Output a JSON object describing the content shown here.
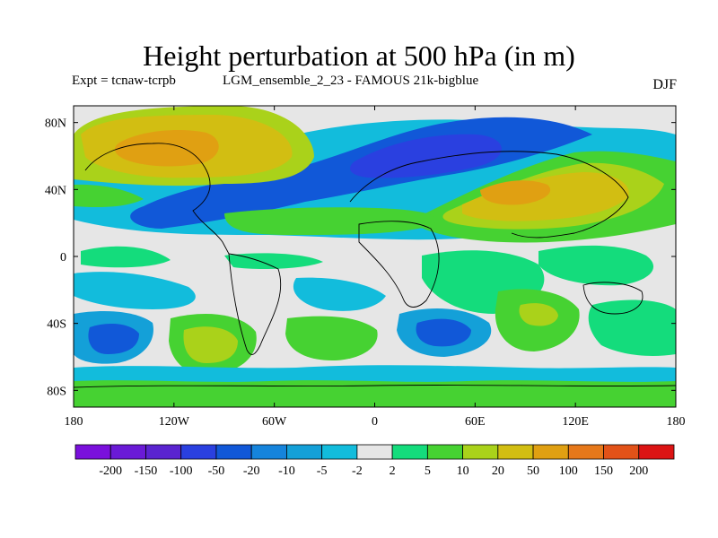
{
  "title": "Height perturbation at 500 hPa (in m)",
  "experiment_label": "Expt = tcnaw-tcrpb",
  "run_label": "LGM_ensemble_2_23 - FAMOUS 21k-bigblue",
  "season": "DJF",
  "map": {
    "x_ticks": [
      "180",
      "120W",
      "60W",
      "0",
      "60E",
      "120E",
      "180"
    ],
    "y_ticks": [
      "80N",
      "40N",
      "0",
      "40S",
      "80S"
    ],
    "lon_range": [
      -180,
      180
    ],
    "lat_range": [
      -90,
      90
    ]
  },
  "colorbar": {
    "labels": [
      "-200",
      "-150",
      "-100",
      "-50",
      "-20",
      "-10",
      "-5",
      "-2",
      "2",
      "5",
      "10",
      "20",
      "50",
      "100",
      "150",
      "200"
    ],
    "colors": [
      "#7a10dc",
      "#6a1ad6",
      "#5a24d0",
      "#2a40e0",
      "#1158d8",
      "#1584dc",
      "#14a0d8",
      "#12bcdc",
      "#e6e6e6",
      "#14dc7c",
      "#46d232",
      "#aad21a",
      "#d2be12",
      "#e0a012",
      "#e6781a",
      "#e25218",
      "#dc1414"
    ]
  }
}
